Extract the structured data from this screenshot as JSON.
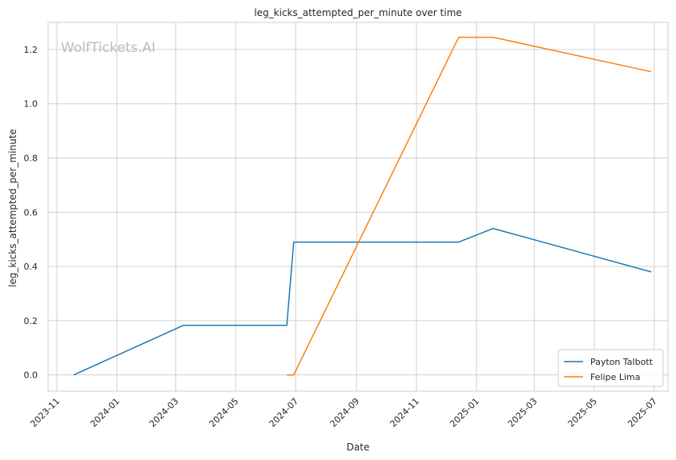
{
  "watermark": "WolfTickets.AI",
  "chart_data": {
    "type": "line",
    "title": "leg_kicks_attempted_per_minute over time",
    "xlabel": "Date",
    "ylabel": "leg_kicks_attempted_per_minute",
    "x_axis": {
      "scale": "date",
      "range": [
        "2023-10-23",
        "2025-07-15"
      ],
      "ticks": [
        "2023-11",
        "2024-01",
        "2024-03",
        "2024-05",
        "2024-07",
        "2024-09",
        "2024-11",
        "2025-01",
        "2025-03",
        "2025-05",
        "2025-07"
      ]
    },
    "y_axis": {
      "range": [
        -0.06,
        1.3
      ],
      "ticks": [
        "0.0",
        "0.2",
        "0.4",
        "0.6",
        "0.8",
        "1.0",
        "1.2"
      ]
    },
    "grid": true,
    "legend_position": "lower-right",
    "series": [
      {
        "name": "Payton Talbott",
        "color": "#1f77b4",
        "points": [
          {
            "x": "2023-11-18",
            "y": 0.0
          },
          {
            "x": "2024-03-09",
            "y": 0.183
          },
          {
            "x": "2024-06-22",
            "y": 0.183
          },
          {
            "x": "2024-06-29",
            "y": 0.49
          },
          {
            "x": "2024-12-14",
            "y": 0.49
          },
          {
            "x": "2025-01-18",
            "y": 0.54
          },
          {
            "x": "2025-06-28",
            "y": 0.38
          }
        ]
      },
      {
        "name": "Felipe Lima",
        "color": "#ff7f0e",
        "points": [
          {
            "x": "2024-06-22",
            "y": 0.0
          },
          {
            "x": "2024-06-29",
            "y": 0.0
          },
          {
            "x": "2024-12-14",
            "y": 1.245
          },
          {
            "x": "2025-01-18",
            "y": 1.245
          },
          {
            "x": "2025-06-28",
            "y": 1.118
          }
        ]
      }
    ]
  }
}
